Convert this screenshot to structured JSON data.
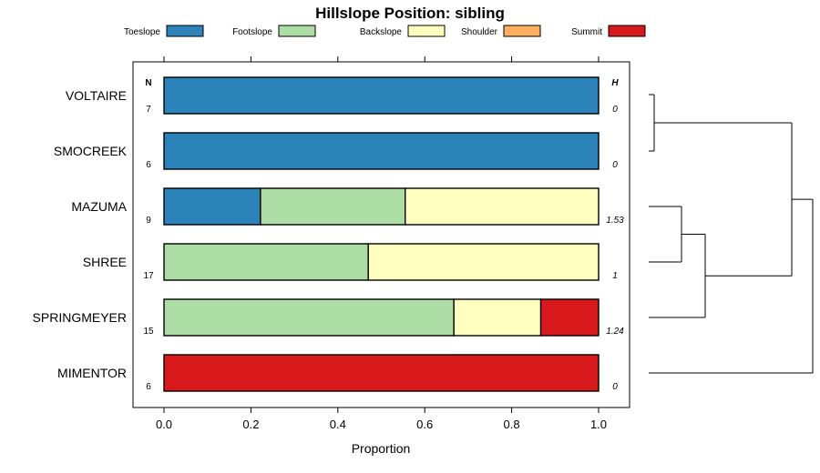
{
  "chart_data": {
    "type": "bar",
    "orientation": "horizontal-stacked",
    "title": "Hillslope Position: sibling",
    "xlabel": "Proportion",
    "xlim": [
      0,
      1
    ],
    "xticks": [
      "0.0",
      "0.2",
      "0.4",
      "0.6",
      "0.8",
      "1.0"
    ],
    "xtick_values": [
      0,
      0.2,
      0.4,
      0.6,
      0.8,
      1.0
    ],
    "n_header": "N",
    "h_header": "H",
    "legend_position": "top",
    "categories": [
      "VOLTAIRE",
      "SMOCREEK",
      "MAZUMA",
      "SHREE",
      "SPRINGMEYER",
      "MIMENTOR"
    ],
    "n": [
      "7",
      "6",
      "9",
      "17",
      "15",
      "6"
    ],
    "h": [
      "0",
      "0",
      "1.53",
      "1",
      "1.24",
      "0"
    ],
    "series": [
      {
        "name": "Toeslope",
        "color": "#2B83BA",
        "values": [
          1.0,
          1.0,
          0.222,
          0,
          0,
          0
        ]
      },
      {
        "name": "Footslope",
        "color": "#ABDDA4",
        "values": [
          0,
          0,
          0.333,
          0.47,
          0.667,
          0
        ]
      },
      {
        "name": "Backslope",
        "color": "#FFFFBF",
        "values": [
          0,
          0,
          0.445,
          0.53,
          0.2,
          0
        ]
      },
      {
        "name": "Shoulder",
        "color": "#FDAE61",
        "values": [
          0,
          0,
          0,
          0,
          0,
          0
        ]
      },
      {
        "name": "Summit",
        "color": "#D7191C",
        "values": [
          0,
          0,
          0,
          0,
          0.133,
          1.0
        ]
      }
    ],
    "dendrogram": {
      "merges": [
        [
          "VOLTAIRE",
          "SMOCREEK"
        ],
        [
          "MAZUMA",
          "SHREE"
        ],
        [
          "MAZUMA+SHREE",
          "SPRINGMEYER"
        ],
        [
          "MAZUMA+SHREE+SPRINGMEYER",
          "VOLTAIRE+SMOCREEK"
        ],
        [
          "ALL",
          "MIMENTOR"
        ]
      ]
    }
  }
}
